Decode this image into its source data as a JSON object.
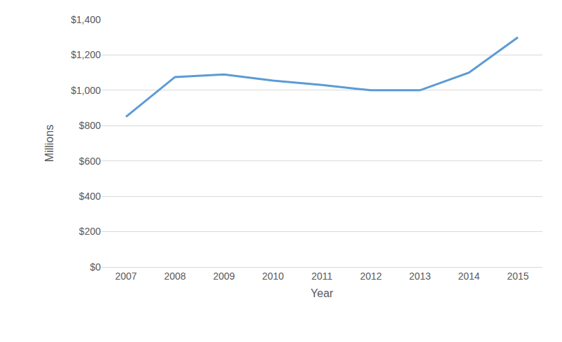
{
  "chart_data": {
    "type": "line",
    "x_label": "Year",
    "y_label": "Millions",
    "categories": [
      "2007",
      "2008",
      "2009",
      "2010",
      "2011",
      "2012",
      "2013",
      "2014",
      "2015"
    ],
    "values": [
      850,
      1075,
      1090,
      1055,
      1030,
      1000,
      1000,
      1100,
      1300
    ],
    "color": "#5b9bd5",
    "ylim": [
      0,
      1400
    ],
    "yticks": [
      {
        "value": 0,
        "label": "$0"
      },
      {
        "value": 200,
        "label": "$200"
      },
      {
        "value": 400,
        "label": "$400"
      },
      {
        "value": 600,
        "label": "$600"
      },
      {
        "value": 800,
        "label": "$800"
      },
      {
        "value": 1000,
        "label": "$1,000"
      },
      {
        "value": 1200,
        "label": "$1,200"
      },
      {
        "value": 1400,
        "label": "$1,400"
      }
    ],
    "grid": true
  }
}
